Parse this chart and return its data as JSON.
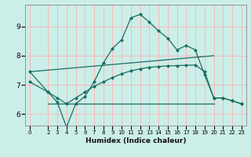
{
  "xlabel": "Humidex (Indice chaleur)",
  "bg_color": "#cceee8",
  "grid_color": "#ffb0b0",
  "line_color": "#1a6e62",
  "ylim": [
    5.6,
    9.75
  ],
  "xlim": [
    -0.5,
    23.5
  ],
  "xticks": [
    0,
    2,
    3,
    4,
    5,
    6,
    7,
    8,
    9,
    10,
    11,
    12,
    13,
    14,
    15,
    16,
    17,
    18,
    19,
    20,
    21,
    22,
    23
  ],
  "yticks": [
    6,
    7,
    8,
    9
  ],
  "line1_x": [
    0,
    2,
    3,
    4,
    5,
    6,
    7,
    8,
    9,
    10,
    11,
    12,
    13,
    14,
    15,
    16,
    17,
    18,
    19,
    20,
    21,
    22,
    23
  ],
  "line1_y": [
    7.45,
    6.75,
    6.4,
    5.55,
    6.35,
    6.6,
    7.1,
    7.75,
    8.25,
    8.55,
    9.3,
    9.42,
    9.15,
    8.85,
    8.6,
    8.2,
    8.35,
    8.2,
    7.35,
    6.55,
    6.55,
    6.45,
    6.35
  ],
  "line2_x": [
    0,
    20
  ],
  "line2_y": [
    7.45,
    8.0
  ],
  "line3_x": [
    0,
    2,
    3,
    4,
    5,
    6,
    7,
    8,
    9,
    10,
    11,
    12,
    13,
    14,
    15,
    16,
    17,
    18,
    19,
    20,
    21,
    22,
    23
  ],
  "line3_y": [
    7.1,
    6.75,
    6.55,
    6.35,
    6.55,
    6.75,
    6.95,
    7.1,
    7.25,
    7.38,
    7.48,
    7.55,
    7.6,
    7.63,
    7.65,
    7.66,
    7.67,
    7.68,
    7.45,
    6.55,
    6.55,
    6.45,
    6.35
  ],
  "line4_x": [
    2,
    20
  ],
  "line4_y": [
    6.35,
    6.35
  ]
}
